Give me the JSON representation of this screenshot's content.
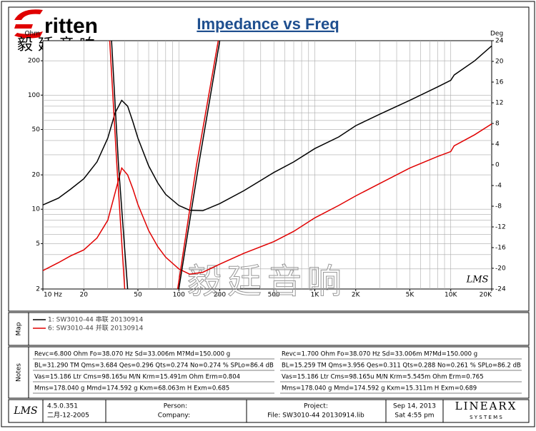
{
  "logo_text": "ritten",
  "logo_chinese": "毅 廷 音 响",
  "watermark": "毅廷音响",
  "plot_logo": "LMS",
  "chart_data": {
    "type": "line",
    "title": "Impedance vs Freq",
    "y_label": "Ohm",
    "y2_label": "Deg",
    "log_x": true,
    "log_y": true,
    "xlim": [
      10,
      20000
    ],
    "ylim": [
      2,
      300
    ],
    "y2lim": [
      -24,
      24
    ],
    "xticks": [
      {
        "value": 10,
        "label": "10 Hz"
      },
      20,
      50,
      100,
      200,
      500,
      {
        "value": 1000,
        "label": "1K"
      },
      {
        "value": 2000,
        "label": "2K"
      },
      {
        "value": 5000,
        "label": "5K"
      },
      {
        "value": 10000,
        "label": "10K"
      },
      {
        "value": 20000,
        "label": "20K"
      }
    ],
    "yticks": [
      2,
      5,
      10,
      20,
      50,
      100,
      200
    ],
    "y2ticks": [
      24,
      20,
      16,
      12,
      8,
      4,
      0,
      -4,
      -8,
      -12,
      -16,
      -20,
      -24
    ],
    "xgrid": [
      20,
      30,
      40,
      50,
      60,
      70,
      80,
      90,
      100,
      200,
      300,
      400,
      500,
      600,
      700,
      800,
      900,
      1000,
      2000,
      3000,
      4000,
      5000,
      6000,
      7000,
      8000,
      9000,
      10000
    ],
    "ygrid": [
      3,
      4,
      5,
      6,
      7,
      8,
      9,
      10,
      20,
      30,
      40,
      50,
      60,
      70,
      80,
      90,
      100,
      200
    ],
    "series": [
      {
        "name": "1: SW3010-44 串联 20130914",
        "color": "#000000",
        "x": [
          10,
          13,
          16,
          20,
          25,
          30,
          34,
          38,
          42,
          46,
          50,
          60,
          70,
          80,
          100,
          120,
          150,
          200,
          300,
          500,
          700,
          1000,
          1500,
          2000,
          3000,
          5000,
          8000,
          10000,
          10600,
          15000,
          20000
        ],
        "values": [
          10.9,
          12.5,
          15,
          18.5,
          26,
          42,
          70,
          90,
          80,
          58,
          42,
          24,
          17,
          13.5,
          10.8,
          9.8,
          9.7,
          11.2,
          14.5,
          21,
          26,
          34,
          43,
          54,
          68,
          90,
          118,
          135,
          150,
          200,
          270
        ]
      },
      {
        "name": "6: SW3010-44 并联 20130914",
        "color": "#e00000",
        "x": [
          10,
          13,
          16,
          20,
          25,
          30,
          34,
          38,
          42,
          46,
          50,
          60,
          70,
          80,
          100,
          120,
          150,
          200,
          300,
          500,
          700,
          1000,
          1500,
          2000,
          3000,
          5000,
          8000,
          10000,
          10600,
          15000,
          20000
        ],
        "values": [
          2.9,
          3.4,
          3.9,
          4.4,
          5.6,
          8,
          14,
          23,
          20,
          15,
          11,
          6.5,
          4.7,
          3.8,
          3.0,
          2.7,
          2.8,
          3.3,
          4.1,
          5.2,
          6.4,
          8.4,
          10.8,
          13.1,
          16.8,
          23,
          29,
          32,
          36,
          45,
          56
        ]
      },
      {
        "color": "#000000",
        "axis": "y2",
        "x": [
          32,
          36,
          42,
          60,
          100,
          140,
          200
        ],
        "values": [
          24,
          0,
          -24,
          null,
          -24,
          0,
          24
        ]
      },
      {
        "color": "#e00000",
        "axis": "y2",
        "x": [
          31,
          35,
          40,
          60,
          98,
          135,
          195
        ],
        "values": [
          24,
          0,
          -24,
          null,
          -24,
          0,
          24
        ]
      }
    ]
  },
  "map_label": "Map",
  "notes": {
    "label": "Notes",
    "left": [
      "Revc=6.800 Ohm  Fo=38.070 Hz  Sd=33.006m M?Md=150.000 g",
      "BL=31.290 TM  Qms=3.684  Qes=0.296  Qts=0.274  No=0.274 %  SPLo=86.4 dB",
      "Vas=15.186 Ltr  Cms=98.165u M/N  Krm=15.491m Ohm  Erm=0.804",
      "Mms=178.040 g  Mmd=174.592 g  Kxm=68.063m H  Exm=0.685"
    ],
    "right": [
      "Revc=1.700 Ohm  Fo=38.070 Hz  Sd=33.006m M?Md=150.000 g",
      "BL=15.259 TM  Qms=3.956  Qes=0.311  Qts=0.288  No=0.261 %  SPLo=86.2 dB",
      "Vas=15.186 Ltr  Cms=98.165u M/N  Krm=5.545m Ohm  Erm=0.765",
      "Mms=178.040 g  Mmd=174.592 g  Kxm=15.311m H  Exm=0.689"
    ]
  },
  "footer": {
    "logo": "LMS",
    "version": "4.5.0.351",
    "build_date": "二月-12-2005",
    "person": "Person:",
    "company": "Company:",
    "project": "Project:",
    "file": "File: SW3010-44 20130914.lib",
    "date": "Sep 14, 2013",
    "time": "Sat  4:55 pm",
    "brand": "LINEARX",
    "brand_sub": "S Y S T E M S"
  }
}
